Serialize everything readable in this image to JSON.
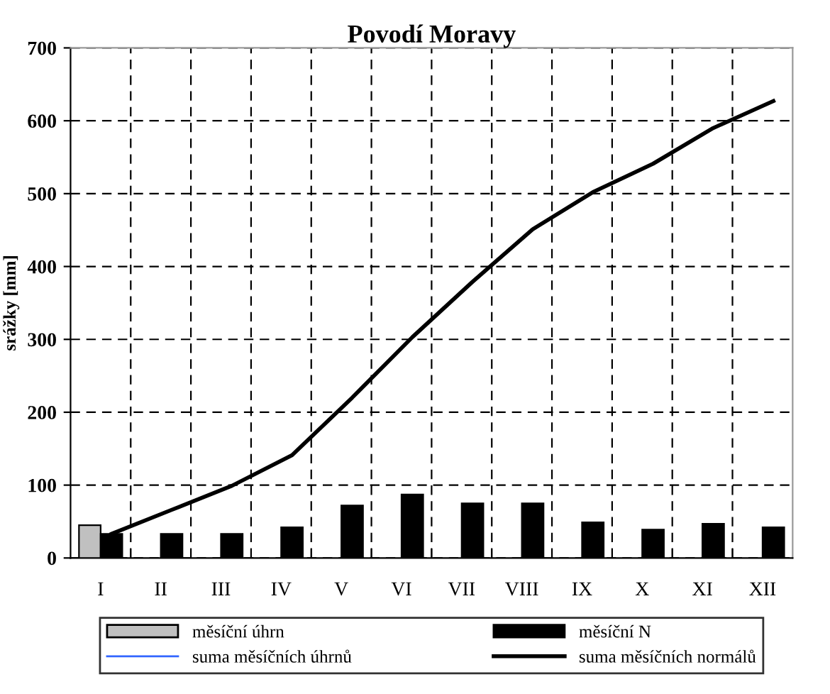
{
  "chart_data": {
    "type": "bar",
    "title": "Povodí Moravy",
    "ylabel": "srážky [mm]",
    "categories": [
      "I",
      "II",
      "III",
      "IV",
      "V",
      "VI",
      "VII",
      "VIII",
      "IX",
      "X",
      "XI",
      "XII"
    ],
    "series": [
      {
        "name": "měsíční úhrn",
        "color": "#c0c0c0",
        "values": [
          45,
          null,
          null,
          null,
          null,
          null,
          null,
          null,
          null,
          null,
          null,
          null
        ]
      },
      {
        "name": "měsíční N",
        "color": "#000000",
        "values": [
          33,
          33,
          33,
          42,
          72,
          87,
          75,
          75,
          49,
          39,
          47,
          42
        ]
      },
      {
        "name": "suma měsíčních úhrnů",
        "type": "line",
        "color": "#3366ff",
        "values": [
          null,
          null,
          null,
          null,
          null,
          null,
          null,
          null,
          null,
          null,
          null,
          null
        ]
      },
      {
        "name": "suma měsíčních normálů",
        "type": "line",
        "color": "#000000",
        "values": [
          33,
          66,
          99,
          141,
          220,
          303,
          379,
          451,
          502,
          541,
          590,
          627
        ]
      }
    ],
    "ylim": [
      0,
      700
    ],
    "yticks": [
      0,
      100,
      200,
      300,
      400,
      500,
      600,
      700
    ],
    "grid": true,
    "legend": "bottom",
    "line_style": "solid",
    "marker": "none"
  }
}
